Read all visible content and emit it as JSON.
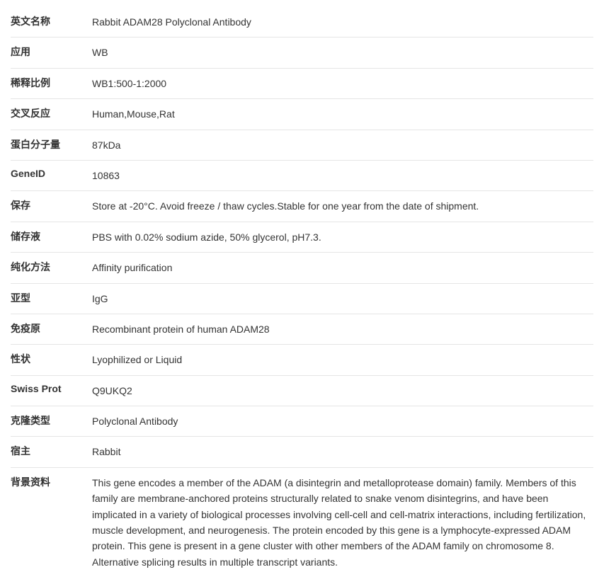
{
  "rows": [
    {
      "label": "英文名称",
      "value": "Rabbit ADAM28 Polyclonal Antibody"
    },
    {
      "label": "应用",
      "value": "WB"
    },
    {
      "label": "稀释比例",
      "value": "WB1:500-1:2000"
    },
    {
      "label": "交叉反应",
      "value": "Human,Mouse,Rat"
    },
    {
      "label": "蛋白分子量",
      "value": "87kDa"
    },
    {
      "label": "GeneID",
      "value": "10863"
    },
    {
      "label": "保存",
      "value": "Store at -20°C. Avoid freeze / thaw cycles.Stable for one year from the date of shipment."
    },
    {
      "label": "储存液",
      "value": "PBS with 0.02% sodium azide, 50% glycerol, pH7.3."
    },
    {
      "label": "纯化方法",
      "value": "Affinity purification"
    },
    {
      "label": "亚型",
      "value": "IgG"
    },
    {
      "label": "免疫原",
      "value": "Recombinant protein of human ADAM28"
    },
    {
      "label": "性状",
      "value": "Lyophilized or Liquid"
    },
    {
      "label": "Swiss Prot",
      "value": "Q9UKQ2"
    },
    {
      "label": "克隆类型",
      "value": "Polyclonal Antibody"
    },
    {
      "label": "宿主",
      "value": "Rabbit"
    },
    {
      "label": "背景资料",
      "value": "This gene encodes a member of the ADAM (a disintegrin and metalloprotease domain) family. Members of this family are membrane-anchored proteins structurally related to snake venom disintegrins, and have been implicated in a variety of biological processes involving cell-cell and cell-matrix interactions, including fertilization, muscle development, and neurogenesis. The protein encoded by this gene is a lymphocyte-expressed ADAM protein. This gene is present in a gene cluster with other members of the ADAM family on chromosome 8. Alternative splicing results in multiple transcript variants."
    }
  ]
}
